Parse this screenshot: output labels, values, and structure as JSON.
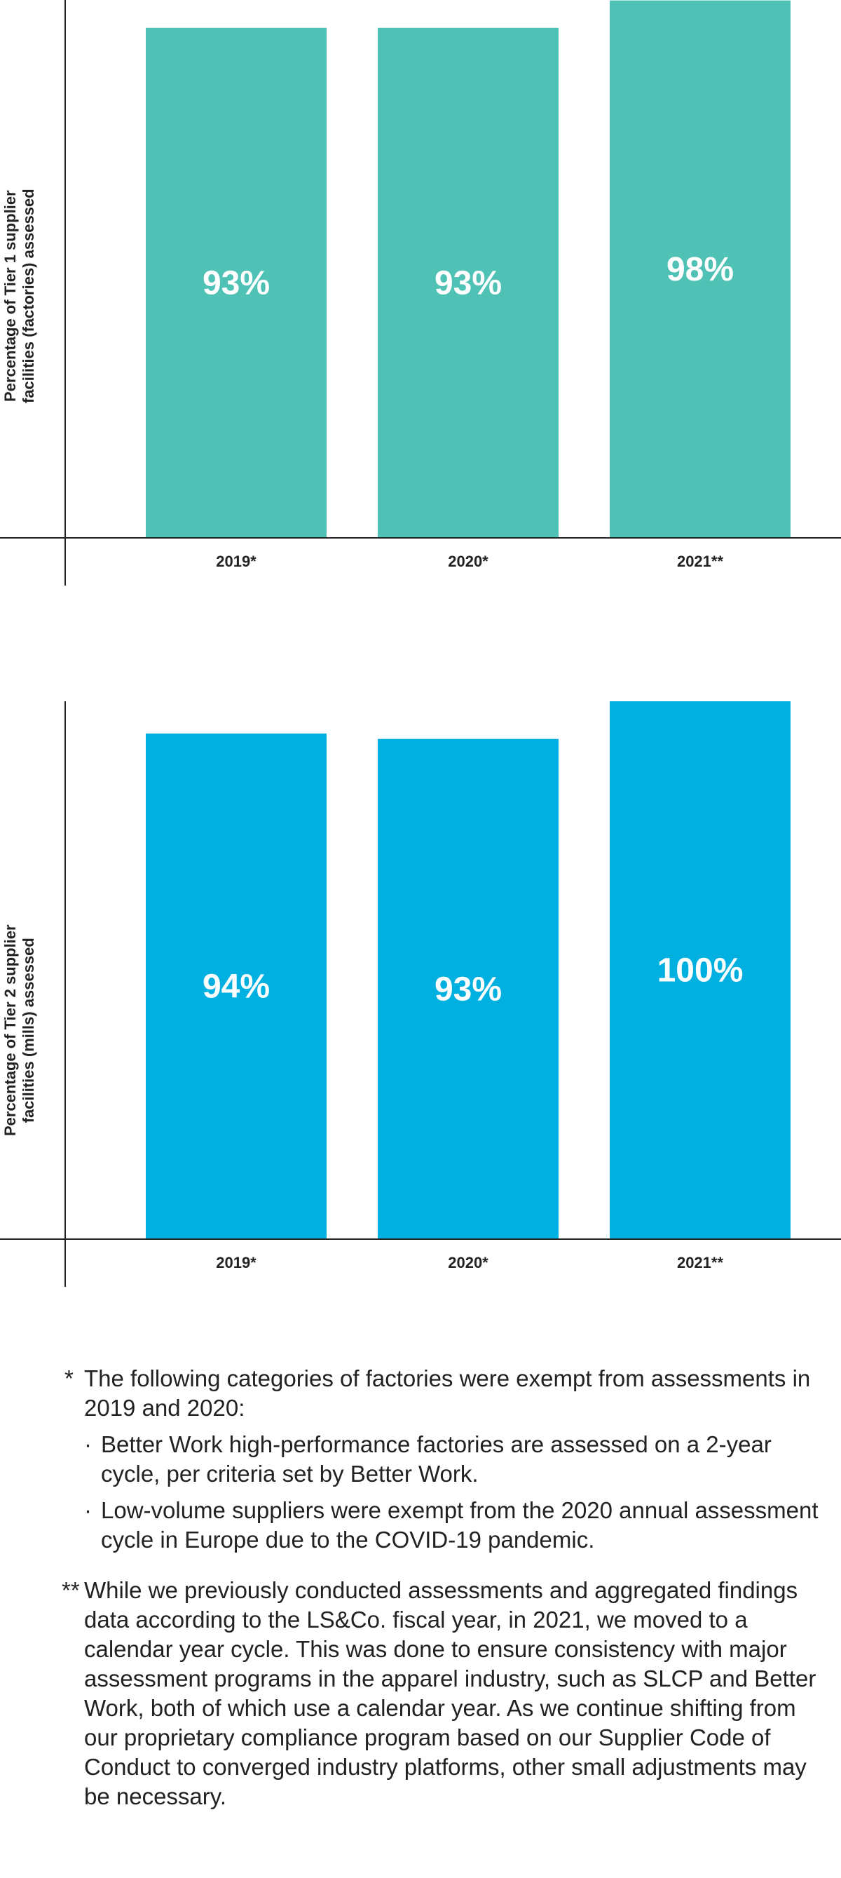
{
  "charts": [
    {
      "ylabel_line1": "Percentage of Tier 1 supplier",
      "ylabel_line2": "facilities (factories) assessed",
      "color": "#4fc1b5"
    },
    {
      "ylabel_line1": "Percentage of Tier 2 supplier",
      "ylabel_line2": "facilities (mills) assessed",
      "color": "#00b0e0"
    }
  ],
  "chart_data": [
    {
      "type": "bar",
      "categories": [
        "2019*",
        "2020*",
        "2021**"
      ],
      "values": [
        93,
        93,
        98
      ],
      "data_labels": [
        "93%",
        "93%",
        "98%"
      ],
      "title": "",
      "xlabel": "",
      "ylabel": "Percentage of Tier 1 supplier facilities (factories) assessed",
      "ylim": [
        0,
        100
      ],
      "grid": false
    },
    {
      "type": "bar",
      "categories": [
        "2019*",
        "2020*",
        "2021**"
      ],
      "values": [
        94,
        93,
        100
      ],
      "data_labels": [
        "94%",
        "93%",
        "100%"
      ],
      "title": "",
      "xlabel": "",
      "ylabel": "Percentage of Tier 2 supplier facilities (mills) assessed",
      "ylim": [
        0,
        100
      ],
      "grid": false
    }
  ],
  "notes": {
    "note1_mark": "*",
    "note1_text": "The following categories of factories were exempt from assessments in 2019 and 2020:",
    "bullet_mark": "·",
    "bullet1": "Better Work high-performance factories are assessed on a 2-year cycle, per criteria set by Better Work.",
    "bullet2": "Low-volume suppliers were exempt from the 2020 annual assessment cycle in Europe due to the COVID-19 pandemic.",
    "note2_mark": "**",
    "note2_text": "While we previously conducted assessments and aggregated findings data according to the LS&Co. fiscal year, in 2021, we moved to a calendar year cycle. This was done to ensure consistency with major assessment programs in the apparel industry, such as SLCP and Better Work, both of which use a calendar year. As we continue shifting from our proprietary compliance program based on our Supplier Code of Conduct to converged industry platforms, other small adjustments may be necessary."
  }
}
